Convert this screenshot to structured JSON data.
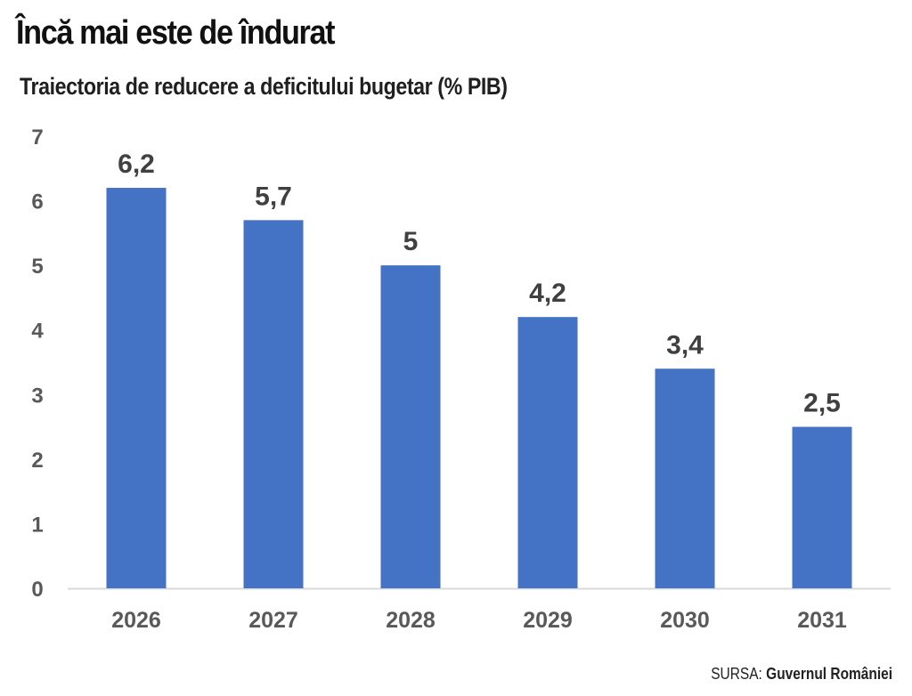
{
  "header": {
    "title": "Încă mai este de îndurat",
    "subtitle": "Traiectoria de reducere a deficitului bugetar (% PIB)"
  },
  "footer": {
    "source_prefix": "SURSA:",
    "source_name": "Guvernul României"
  },
  "colors": {
    "bar": "#4472c4",
    "axis_text": "#595959",
    "label_text": "#404040",
    "baseline": "#d9d9d9"
  },
  "chart_data": {
    "type": "bar",
    "title": "Traiectoria de reducere a deficitului bugetar (% PIB)",
    "categories": [
      "2026",
      "2027",
      "2028",
      "2029",
      "2030",
      "2031"
    ],
    "values": [
      6.2,
      5.7,
      5.0,
      4.2,
      3.4,
      2.5
    ],
    "data_labels": [
      "6,2",
      "5,7",
      "5",
      "4,2",
      "3,4",
      "2,5"
    ],
    "xlabel": "",
    "ylabel": "",
    "ylim": [
      0,
      7
    ],
    "yticks": [
      0,
      1,
      2,
      3,
      4,
      5,
      6,
      7
    ],
    "grid": false,
    "legend": "none"
  }
}
